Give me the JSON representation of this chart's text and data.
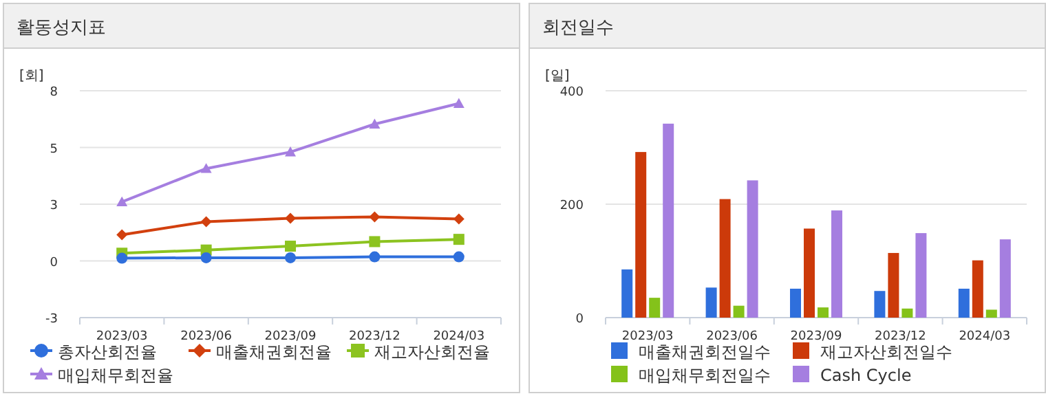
{
  "chart_data": [
    {
      "type": "line",
      "title": "활동성지표",
      "ylabel": "[회]",
      "categories": [
        "2023/03",
        "2023/06",
        "2023/09",
        "2023/12",
        "2024/03"
      ],
      "ylim": [
        -2.5,
        7.5
      ],
      "yticks": [
        {
          "value": -2.5,
          "label": "-3"
        },
        0,
        {
          "value": 2.5,
          "label": "3"
        },
        5,
        {
          "value": 7.5,
          "label": "8"
        }
      ],
      "grid": "y",
      "legend": "bottom",
      "series": [
        {
          "name": "총자산회전율",
          "color": "#2f6fdc",
          "marker": "circle",
          "values": [
            0.12,
            0.14,
            0.14,
            0.18,
            0.18
          ]
        },
        {
          "name": "매출채권회전율",
          "color": "#d2400e",
          "marker": "diamond",
          "values": [
            1.15,
            1.73,
            1.88,
            1.94,
            1.85
          ]
        },
        {
          "name": "재고자산회전율",
          "color": "#8cc320",
          "marker": "square",
          "values": [
            0.34,
            0.48,
            0.65,
            0.85,
            0.95
          ]
        },
        {
          "name": "매입채무회전율",
          "color": "#a57ee0",
          "marker": "triangle",
          "values": [
            2.6,
            4.07,
            4.8,
            6.03,
            6.94
          ]
        }
      ]
    },
    {
      "type": "bar",
      "title": "회전일수",
      "ylabel": "[일]",
      "categories": [
        "2023/03",
        "2023/06",
        "2023/09",
        "2023/12",
        "2024/03"
      ],
      "ylim": [
        0,
        400
      ],
      "yticks": [
        0,
        200,
        400
      ],
      "grid": "y",
      "legend": "bottom",
      "series": [
        {
          "name": "매출채권회전일수",
          "color": "#2f6fdc",
          "values": [
            85,
            53,
            51,
            47,
            51
          ]
        },
        {
          "name": "재고자산회전일수",
          "color": "#cc3a0a",
          "values": [
            292,
            209,
            157,
            114,
            101
          ]
        },
        {
          "name": "매입채무회전일수",
          "color": "#84c21a",
          "values": [
            35,
            21,
            18,
            16,
            14
          ]
        },
        {
          "name": "Cash Cycle",
          "color": "#a57ee0",
          "values": [
            342,
            242,
            189,
            149,
            138
          ]
        }
      ]
    }
  ]
}
